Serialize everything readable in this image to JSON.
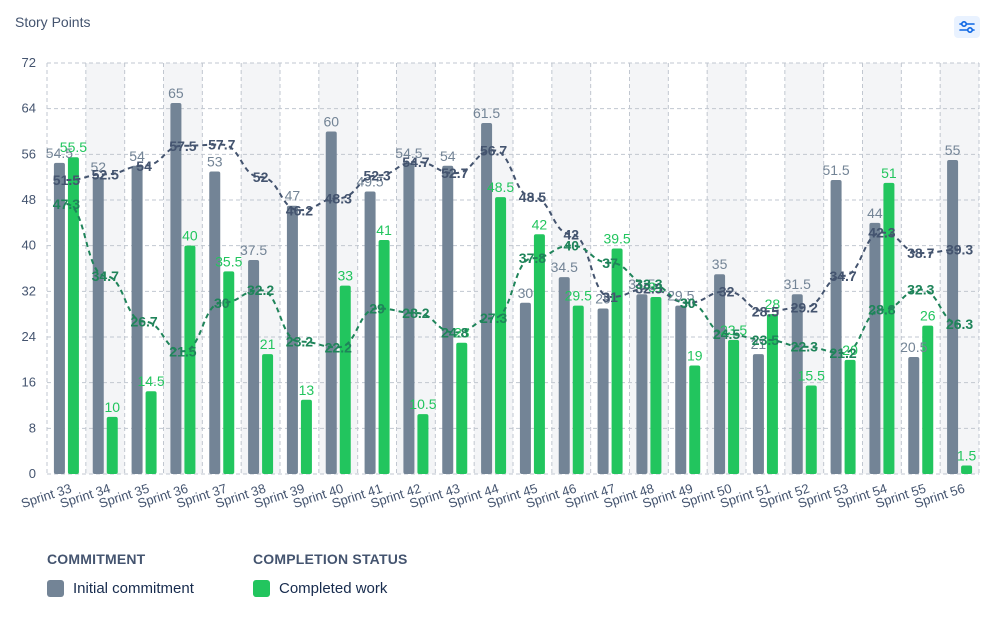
{
  "header": {
    "title": "Story Points",
    "settings_icon": "sliders-icon"
  },
  "legend": {
    "commitment_heading": "COMMITMENT",
    "commitment_label": "Initial commitment",
    "completion_heading": "COMPLETION STATUS",
    "completion_label": "Completed work"
  },
  "colors": {
    "commitment": "#738496",
    "completed": "#22c55e",
    "commitment_trend": "#44546f",
    "completed_trend": "#1f845a",
    "commitment_label": "#738496",
    "completed_label": "#22c55e"
  },
  "chart_data": {
    "type": "bar",
    "title": "",
    "xlabel": "",
    "ylabel": "Story Points",
    "ylim": [
      0,
      72
    ],
    "yticks": [
      0,
      8,
      16,
      24,
      32,
      40,
      48,
      56,
      64,
      72
    ],
    "grid": true,
    "categories": [
      "Sprint 33",
      "Sprint 34",
      "Sprint 35",
      "Sprint 36",
      "Sprint 37",
      "Sprint 38",
      "Sprint 39",
      "Sprint 40",
      "Sprint 41",
      "Sprint 42",
      "Sprint 43",
      "Sprint 44",
      "Sprint 45",
      "Sprint 46",
      "Sprint 47",
      "Sprint 48",
      "Sprint 49",
      "Sprint 50",
      "Sprint 51",
      "Sprint 52",
      "Sprint 53",
      "Sprint 54",
      "Sprint 55",
      "Sprint 56"
    ],
    "series": [
      {
        "name": "Initial commitment",
        "kind": "bar",
        "values": [
          54.5,
          52,
          54,
          65,
          53,
          37.5,
          47,
          60,
          49.5,
          54.5,
          54,
          61.5,
          30,
          34.5,
          29,
          31.5,
          29.5,
          35,
          21,
          31.5,
          51.5,
          44,
          20.5,
          55
        ]
      },
      {
        "name": "Completed work",
        "kind": "bar",
        "values": [
          55.5,
          10,
          14.5,
          40,
          35.5,
          21,
          13,
          33,
          41,
          10.5,
          23,
          48.5,
          42,
          29.5,
          39.5,
          31,
          19,
          23.5,
          28,
          15.5,
          20,
          51,
          26,
          1.5
        ]
      },
      {
        "kind": "line",
        "values": [
          51.5,
          52.5,
          54,
          57.5,
          57.7,
          52,
          46.2,
          48.3,
          52.3,
          54.7,
          52.7,
          56.7,
          48.5,
          42,
          31,
          32.5,
          30,
          32,
          28.5,
          29.2,
          34.7,
          42.3,
          38.7,
          39.3
        ]
      },
      {
        "kind": "line",
        "values": [
          47.3,
          34.7,
          26.7,
          21.5,
          30,
          32.2,
          23.2,
          22.2,
          29,
          28.2,
          24.8,
          27.3,
          37.8,
          40,
          37,
          33.3,
          30,
          24.5,
          23.5,
          22.3,
          21.2,
          28.8,
          32.3,
          26.3
        ]
      }
    ]
  }
}
